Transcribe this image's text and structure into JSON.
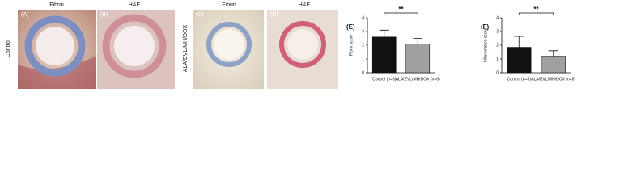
{
  "figure": {
    "panels": [
      {
        "label": "(A)",
        "column": "Fibrin"
      },
      {
        "label": "(B)",
        "column": "H&E"
      },
      {
        "label": "(C)",
        "column": "Fibrin"
      },
      {
        "label": "(D)",
        "column": "H&E"
      }
    ],
    "row_labels": [
      "Control",
      "ALA/EVL/MH/DOX"
    ]
  },
  "chart_data": [
    {
      "type": "bar",
      "panel_label": "(E)",
      "y_label": "Fibrin score",
      "categories": [
        "Control (n=6)",
        "ALA/EVL/MH/DOX (n=6)"
      ],
      "values": [
        2.6,
        2.1
      ],
      "errors": [
        0.5,
        0.4
      ],
      "colors": [
        "#111111",
        "#a0a0a0"
      ],
      "ylim": [
        0,
        4
      ],
      "yticks": [
        0,
        1,
        2,
        3,
        4
      ],
      "annotation": "**"
    },
    {
      "type": "bar",
      "panel_label": "(F)",
      "y_label": "Inflammation score",
      "categories": [
        "Control (n=6)",
        "ALA/EVL/MH/DOX (n=6)"
      ],
      "values": [
        1.85,
        1.2
      ],
      "errors": [
        0.8,
        0.4
      ],
      "colors": [
        "#111111",
        "#a0a0a0"
      ],
      "ylim": [
        0,
        4
      ],
      "yticks": [
        0,
        1,
        2,
        3,
        4
      ],
      "annotation": "**"
    }
  ]
}
